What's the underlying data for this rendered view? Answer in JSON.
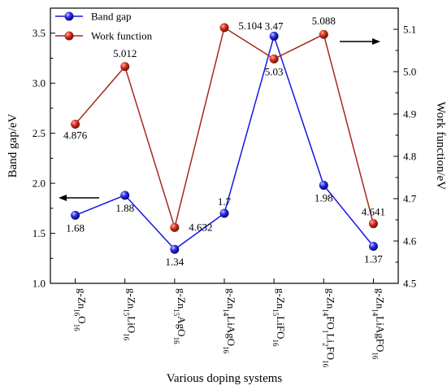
{
  "chart_data": {
    "type": "line",
    "xlabel": "Various doping systems",
    "ylabel_left": "Band gap/eV",
    "ylabel_right": "Work function/eV",
    "ylim_left": [
      1.0,
      3.75
    ],
    "yticks_left": [
      "1.0",
      "1.5",
      "2.0",
      "2.5",
      "3.0",
      "3.5"
    ],
    "ylim_right": [
      4.5,
      5.15
    ],
    "yticks_right": [
      "4.5",
      "4.6",
      "4.7",
      "4.8",
      "4.9",
      "5.0",
      "5.1"
    ],
    "legend_position": "top-left",
    "categories": [
      {
        "base": "g-Zn",
        "parts": [
          {
            "t": "16",
            "s": true
          },
          {
            "t": "O",
            "s": false
          },
          {
            "t": "16",
            "s": true
          }
        ]
      },
      {
        "base": "g-Zn",
        "parts": [
          {
            "t": "15",
            "s": true
          },
          {
            "t": "LiO",
            "s": false
          },
          {
            "t": "16",
            "s": true
          }
        ]
      },
      {
        "base": "g-Zn",
        "parts": [
          {
            "t": "15",
            "s": true
          },
          {
            "t": "AgO",
            "s": false
          },
          {
            "t": "16",
            "s": true
          }
        ]
      },
      {
        "base": "g-Zn",
        "parts": [
          {
            "t": "14",
            "s": true
          },
          {
            "t": "LiAgO",
            "s": false
          },
          {
            "t": "16",
            "s": true
          }
        ]
      },
      {
        "base": "g-Zn",
        "parts": [
          {
            "t": "15",
            "s": true
          },
          {
            "t": "LiFO",
            "s": false
          },
          {
            "t": "16",
            "s": true
          }
        ]
      },
      {
        "base": "g-Zn",
        "parts": [
          {
            "t": "14",
            "s": true
          },
          {
            "t": "FO",
            "s": false
          },
          {
            "t": "1",
            "s": true
          },
          {
            "t": "Li",
            "s": false
          },
          {
            "t": "2",
            "s": true
          },
          {
            "t": "FO",
            "s": false
          },
          {
            "t": "16",
            "s": true
          }
        ]
      },
      {
        "base": "g-Zn",
        "parts": [
          {
            "t": "14",
            "s": true
          },
          {
            "t": "LiAgFO",
            "s": false
          },
          {
            "t": "16",
            "s": true
          }
        ]
      }
    ],
    "series": [
      {
        "name": "Band gap",
        "axis": "left",
        "color": "#1515e8",
        "values": [
          1.68,
          1.88,
          1.34,
          1.7,
          3.47,
          1.98,
          1.37
        ],
        "labels": [
          "1.68",
          "1.88",
          "1.34",
          "1.7",
          "3.47",
          "1.98",
          "1.37"
        ]
      },
      {
        "name": "Work function",
        "axis": "right",
        "color": "#a52a1a",
        "values": [
          4.876,
          5.012,
          4.632,
          5.104,
          5.03,
          5.088,
          4.641
        ],
        "labels": [
          "4.876",
          "5.012",
          "4.632",
          "5.104",
          "5.03",
          "5.088",
          "4.641"
        ]
      }
    ],
    "annotations": [
      {
        "type": "arrow",
        "direction": "left",
        "target_axis": "left"
      },
      {
        "type": "arrow",
        "direction": "right",
        "target_axis": "right"
      }
    ]
  }
}
